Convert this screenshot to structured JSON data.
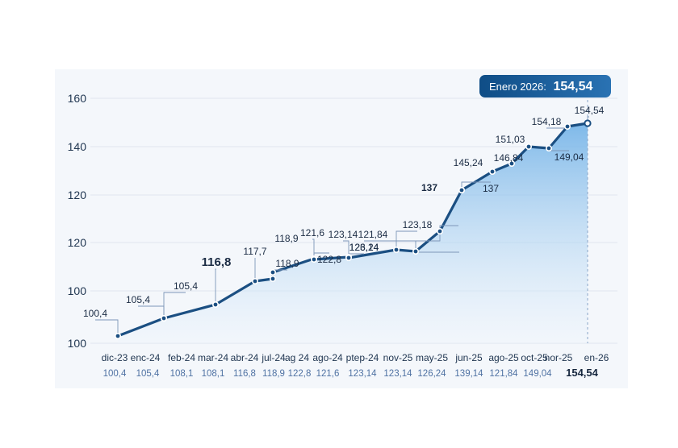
{
  "chart_data": {
    "type": "area",
    "title": "",
    "xlabel": "",
    "ylabel": "",
    "y_tick_labels": [
      "100",
      "100",
      "120",
      "120",
      "140",
      "160"
    ],
    "categories": [
      "dic-23",
      "enc-24",
      "feb-24",
      "mar-24",
      "abr-24",
      "jul-24",
      "ag 24",
      "ago-24",
      "ptep-24",
      "nov-25",
      "may-25",
      "jun-25",
      "ago-25",
      "oct-25",
      "nor-25",
      "en-26"
    ],
    "bottom_row": [
      "100,4",
      "105,4",
      "108,1",
      "108,1",
      "116,8",
      "118,9",
      "122,8",
      "121,6",
      "123,14",
      "123,14",
      "126,24",
      "139,14",
      "121,84",
      "149,04",
      "154,54"
    ],
    "points": [
      {
        "y": 100.4,
        "label": "100,4"
      },
      {
        "y": 105.4,
        "label": "105,4"
      },
      {
        "y": 105.4,
        "label": "105,4"
      },
      {
        "y": 116.8,
        "label": "116,8"
      },
      {
        "y": 117.7,
        "label": "117,7"
      },
      {
        "y": 118.9,
        "label": "118,9"
      },
      {
        "y": 118.9,
        "label": "118,9"
      },
      {
        "y": 121.6,
        "label": "121,6"
      },
      {
        "y": 122.8,
        "label": "122,8"
      },
      {
        "y": 123.14,
        "label": "123,14"
      },
      {
        "y": 123.14,
        "label": "123,14"
      },
      {
        "y": 123.18,
        "label": "123,18"
      },
      {
        "y": 121.84,
        "label": "121,84"
      },
      {
        "y": 126.24,
        "label": "126,24"
      },
      {
        "y": 137,
        "label": "137"
      },
      {
        "y": 137,
        "label": "137"
      },
      {
        "y": 145.24,
        "label": "145,24"
      },
      {
        "y": 146.84,
        "label": "146,84"
      },
      {
        "y": 151.03,
        "label": "151,03"
      },
      {
        "y": 149.04,
        "label": "149,04"
      },
      {
        "y": 154.18,
        "label": "154,18"
      },
      {
        "y": 154.54,
        "label": "154,54"
      }
    ],
    "grid": true,
    "legend": "none",
    "callout": {
      "prefix": "Enero 2026:",
      "value": "154,54"
    }
  },
  "colors": {
    "line": "#1b4f82",
    "fill_top": "#6aaee6",
    "fill_bottom": "#eef5fc",
    "badge_start": "#0f4d86",
    "badge_end": "#2a72b3",
    "text": "#1f3550",
    "bottom_text": "#4f72a3"
  }
}
